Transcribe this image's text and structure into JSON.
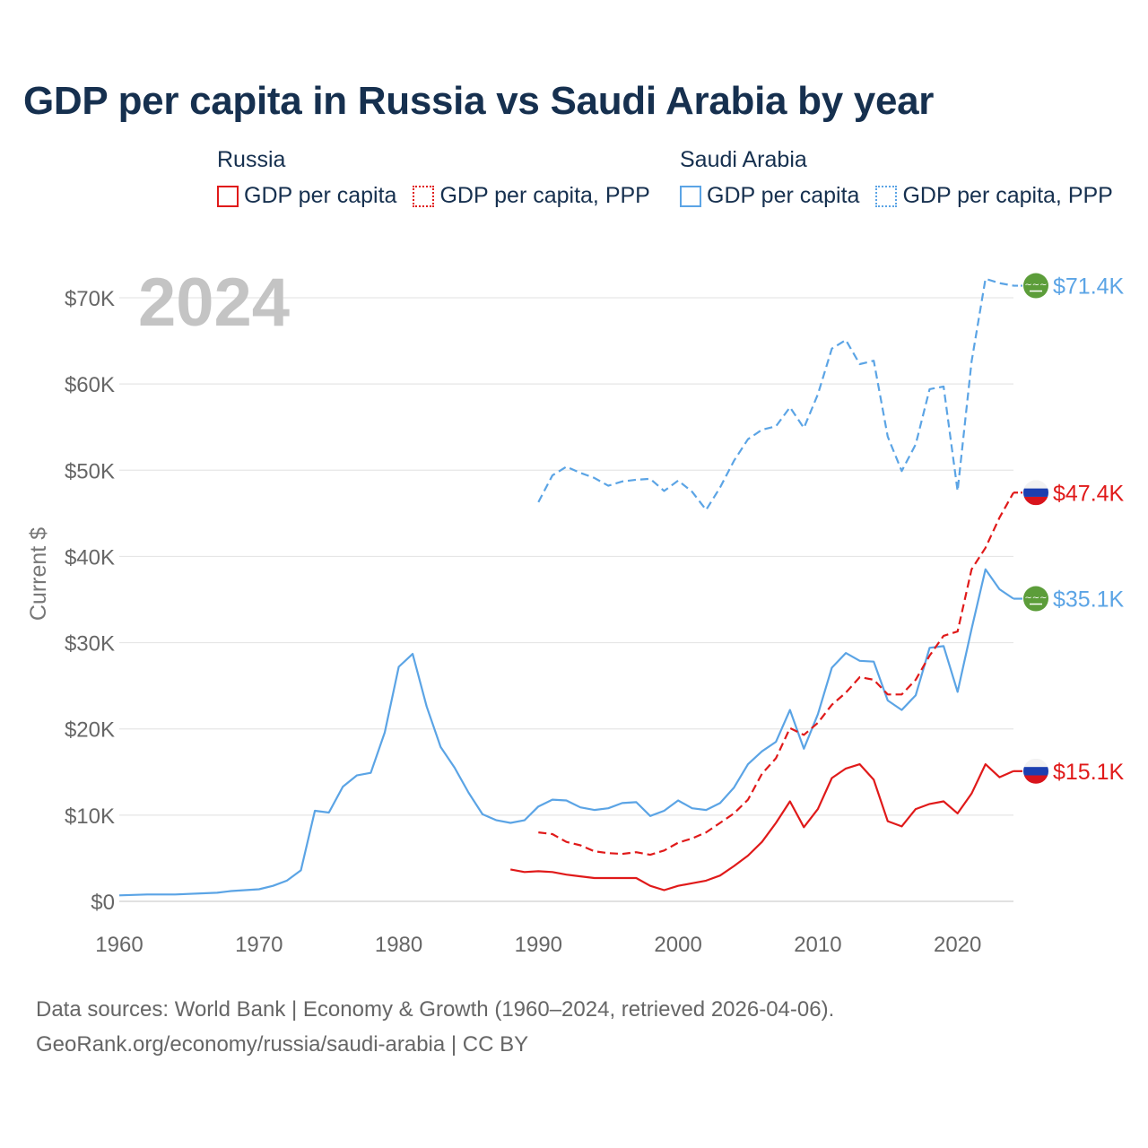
{
  "title": "GDP per capita in Russia vs Saudi Arabia by year",
  "legend": {
    "russia": {
      "name": "Russia",
      "items": [
        "GDP per capita",
        "GDP per capita, PPP"
      ]
    },
    "saudi": {
      "name": "Saudi Arabia",
      "items": [
        "GDP per capita",
        "GDP per capita, PPP"
      ]
    }
  },
  "footer": {
    "line1": "Data sources: World Bank | Economy & Growth (1960–2024, retrieved 2026-04-06).",
    "line2": "GeoRank.org/economy/russia/saudi-arabia | CC BY"
  },
  "colors": {
    "russia": "#e01a1a",
    "saudi": "#5ba4e5",
    "grid": "#e6e6e6",
    "year_label": "#c4c4c4",
    "axis_text": "#666666"
  },
  "chart_data": {
    "type": "line",
    "year_label": "2024",
    "ylabel": "Current $",
    "xlim": [
      1960,
      2024
    ],
    "ylim": [
      0,
      70000
    ],
    "x_ticks": [
      1960,
      1970,
      1980,
      1990,
      2000,
      2010,
      2020
    ],
    "x_tick_labels": [
      "1960",
      "1970",
      "1980",
      "1990",
      "2000",
      "2010",
      "2020"
    ],
    "y_ticks": [
      0,
      10000,
      20000,
      30000,
      40000,
      50000,
      60000,
      70000
    ],
    "y_tick_labels": [
      "$0",
      "$10K",
      "$20K",
      "$30K",
      "$40K",
      "$50K",
      "$60K",
      "$70K"
    ],
    "series": [
      {
        "name": "Saudi Arabia GDP per capita, PPP",
        "country": "saudi",
        "style": "dashed",
        "end_label": "$71.4K",
        "points": [
          [
            1990,
            46300
          ],
          [
            1991,
            49400
          ],
          [
            1992,
            50400
          ],
          [
            1993,
            49700
          ],
          [
            1994,
            49100
          ],
          [
            1995,
            48200
          ],
          [
            1996,
            48700
          ],
          [
            1997,
            48900
          ],
          [
            1998,
            49000
          ],
          [
            1999,
            47600
          ],
          [
            2000,
            48800
          ],
          [
            2001,
            47500
          ],
          [
            2002,
            45400
          ],
          [
            2003,
            48000
          ],
          [
            2004,
            51100
          ],
          [
            2005,
            53600
          ],
          [
            2006,
            54700
          ],
          [
            2007,
            55100
          ],
          [
            2008,
            57300
          ],
          [
            2009,
            54900
          ],
          [
            2010,
            58800
          ],
          [
            2011,
            64100
          ],
          [
            2012,
            65100
          ],
          [
            2013,
            62300
          ],
          [
            2014,
            62700
          ],
          [
            2015,
            53900
          ],
          [
            2016,
            49900
          ],
          [
            2017,
            53000
          ],
          [
            2018,
            59400
          ],
          [
            2019,
            59700
          ],
          [
            2020,
            47600
          ],
          [
            2021,
            62600
          ],
          [
            2022,
            72200
          ],
          [
            2023,
            71700
          ],
          [
            2024,
            71400
          ]
        ]
      },
      {
        "name": "Saudi Arabia GDP per capita",
        "country": "saudi",
        "style": "solid",
        "end_label": "$35.1K",
        "points": [
          [
            1960,
            700
          ],
          [
            1962,
            800
          ],
          [
            1964,
            800
          ],
          [
            1967,
            1000
          ],
          [
            1968,
            1200
          ],
          [
            1969,
            1300
          ],
          [
            1970,
            1400
          ],
          [
            1971,
            1800
          ],
          [
            1972,
            2400
          ],
          [
            1973,
            3600
          ],
          [
            1974,
            10500
          ],
          [
            1975,
            10300
          ],
          [
            1976,
            13300
          ],
          [
            1977,
            14600
          ],
          [
            1978,
            14900
          ],
          [
            1979,
            19600
          ],
          [
            1980,
            27200
          ],
          [
            1981,
            28700
          ],
          [
            1982,
            22600
          ],
          [
            1983,
            17900
          ],
          [
            1984,
            15500
          ],
          [
            1985,
            12600
          ],
          [
            1986,
            10100
          ],
          [
            1987,
            9400
          ],
          [
            1988,
            9100
          ],
          [
            1989,
            9400
          ],
          [
            1990,
            11000
          ],
          [
            1991,
            11800
          ],
          [
            1992,
            11700
          ],
          [
            1993,
            10900
          ],
          [
            1994,
            10600
          ],
          [
            1995,
            10800
          ],
          [
            1996,
            11400
          ],
          [
            1997,
            11500
          ],
          [
            1998,
            9900
          ],
          [
            1999,
            10500
          ],
          [
            2000,
            11700
          ],
          [
            2001,
            10800
          ],
          [
            2002,
            10600
          ],
          [
            2003,
            11400
          ],
          [
            2004,
            13200
          ],
          [
            2005,
            15900
          ],
          [
            2006,
            17400
          ],
          [
            2007,
            18500
          ],
          [
            2008,
            22200
          ],
          [
            2009,
            17700
          ],
          [
            2010,
            21700
          ],
          [
            2011,
            27100
          ],
          [
            2012,
            28800
          ],
          [
            2013,
            27900
          ],
          [
            2014,
            27800
          ],
          [
            2015,
            23300
          ],
          [
            2016,
            22200
          ],
          [
            2017,
            23900
          ],
          [
            2018,
            29400
          ],
          [
            2019,
            29600
          ],
          [
            2020,
            24300
          ],
          [
            2021,
            31600
          ],
          [
            2022,
            38500
          ],
          [
            2023,
            36200
          ],
          [
            2024,
            35100
          ]
        ]
      },
      {
        "name": "Russia GDP per capita, PPP",
        "country": "russia",
        "style": "dashed",
        "end_label": "$47.4K",
        "points": [
          [
            1990,
            8000
          ],
          [
            1991,
            7800
          ],
          [
            1992,
            6900
          ],
          [
            1993,
            6500
          ],
          [
            1994,
            5800
          ],
          [
            1995,
            5600
          ],
          [
            1996,
            5500
          ],
          [
            1997,
            5700
          ],
          [
            1998,
            5400
          ],
          [
            1999,
            5900
          ],
          [
            2000,
            6800
          ],
          [
            2001,
            7300
          ],
          [
            2002,
            8000
          ],
          [
            2003,
            9100
          ],
          [
            2004,
            10200
          ],
          [
            2005,
            11800
          ],
          [
            2006,
            14800
          ],
          [
            2007,
            16600
          ],
          [
            2008,
            20100
          ],
          [
            2009,
            19300
          ],
          [
            2010,
            20700
          ],
          [
            2011,
            22800
          ],
          [
            2012,
            24200
          ],
          [
            2013,
            26000
          ],
          [
            2014,
            25700
          ],
          [
            2015,
            24000
          ],
          [
            2016,
            24000
          ],
          [
            2017,
            25700
          ],
          [
            2018,
            28500
          ],
          [
            2019,
            30800
          ],
          [
            2020,
            31300
          ],
          [
            2021,
            38500
          ],
          [
            2022,
            41000
          ],
          [
            2023,
            44500
          ],
          [
            2024,
            47400
          ]
        ]
      },
      {
        "name": "Russia GDP per capita",
        "country": "russia",
        "style": "solid",
        "end_label": "$15.1K",
        "points": [
          [
            1988,
            3700
          ],
          [
            1989,
            3400
          ],
          [
            1990,
            3500
          ],
          [
            1991,
            3400
          ],
          [
            1992,
            3100
          ],
          [
            1993,
            2900
          ],
          [
            1994,
            2700
          ],
          [
            1995,
            2700
          ],
          [
            1996,
            2700
          ],
          [
            1997,
            2700
          ],
          [
            1998,
            1800
          ],
          [
            1999,
            1300
          ],
          [
            2000,
            1800
          ],
          [
            2001,
            2100
          ],
          [
            2002,
            2400
          ],
          [
            2003,
            3000
          ],
          [
            2004,
            4100
          ],
          [
            2005,
            5300
          ],
          [
            2006,
            6900
          ],
          [
            2007,
            9100
          ],
          [
            2008,
            11600
          ],
          [
            2009,
            8600
          ],
          [
            2010,
            10700
          ],
          [
            2011,
            14300
          ],
          [
            2012,
            15400
          ],
          [
            2013,
            15900
          ],
          [
            2014,
            14100
          ],
          [
            2015,
            9300
          ],
          [
            2016,
            8700
          ],
          [
            2017,
            10700
          ],
          [
            2018,
            11300
          ],
          [
            2019,
            11600
          ],
          [
            2020,
            10200
          ],
          [
            2021,
            12500
          ],
          [
            2022,
            15900
          ],
          [
            2023,
            14400
          ],
          [
            2024,
            15100
          ]
        ]
      }
    ]
  }
}
